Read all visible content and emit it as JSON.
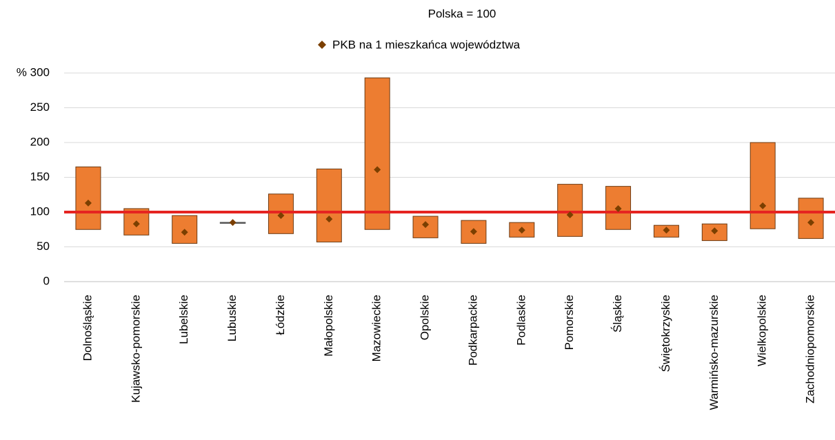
{
  "chart_data": {
    "type": "range-bar",
    "title": "Polska = 100",
    "categories": [
      "Dolnośląskie",
      "Kujawsko-pomorskie",
      "Lubelskie",
      "Lubuskie",
      "Łódzkie",
      "Małopolskie",
      "Mazowieckie",
      "Opolskie",
      "Podkarpackie",
      "Podlaskie",
      "Pomorskie",
      "Śląskie",
      "Świętokrzyskie",
      "Warmińsko-mazurskie",
      "Wielkopolskie",
      "Zachodniopomorskie"
    ],
    "ranges": {
      "color": "#ed7d31",
      "edge": "#6b3a12",
      "low": [
        75,
        67,
        55,
        85,
        69,
        57,
        75,
        63,
        55,
        64,
        65,
        75,
        64,
        59,
        76,
        62
      ],
      "high": [
        165,
        105,
        95,
        85,
        126,
        162,
        293,
        94,
        88,
        85,
        140,
        137,
        81,
        83,
        200,
        120
      ]
    },
    "series": [
      {
        "name": "PKB na 1 mieszkańca województwa",
        "color": "#7b3f00",
        "values": [
          113,
          83,
          71,
          85,
          95,
          90,
          161,
          82,
          72,
          74,
          96,
          105,
          74,
          73,
          109,
          85
        ]
      }
    ],
    "reference_line": {
      "value": 100,
      "color": "#e52421"
    },
    "ylim": [
      0,
      300
    ],
    "yticks": [
      0,
      50,
      100,
      150,
      200,
      250,
      {
        "value": 300,
        "label": "% 300"
      }
    ],
    "grid": true
  }
}
